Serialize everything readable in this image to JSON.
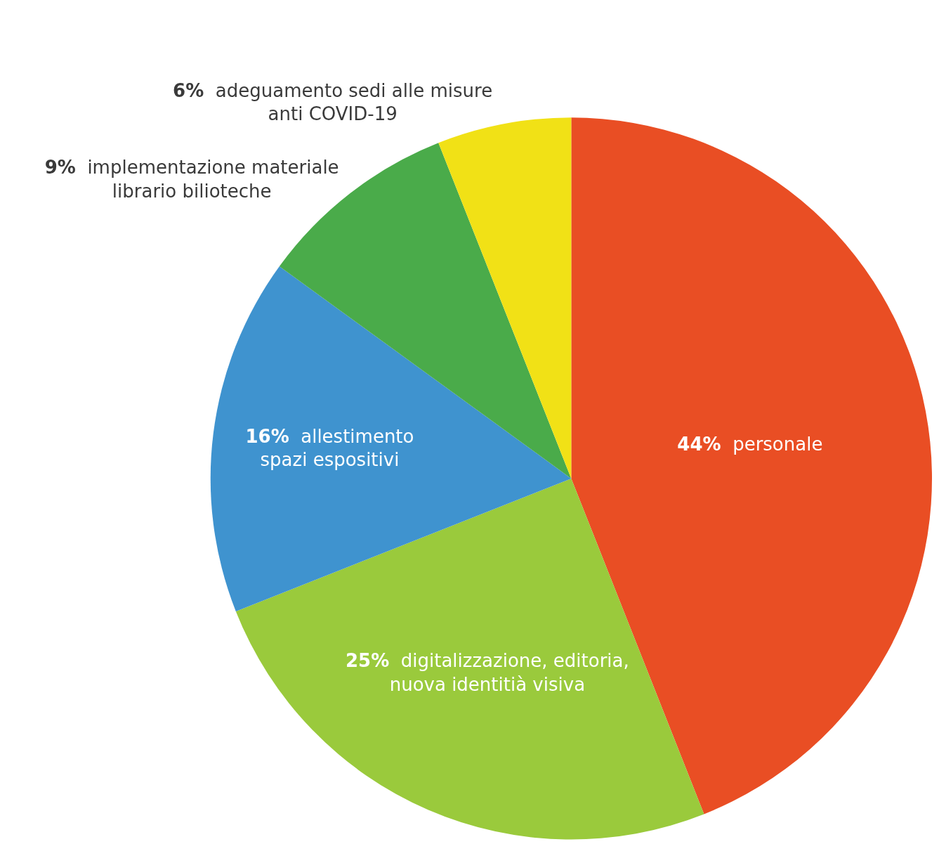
{
  "chart_data": {
    "type": "pie",
    "categories": [
      "personale",
      "digitalizzazione, editoria,\nnuova identitià visiva",
      "allestimento\nspazi espositivi",
      "implementazione materiale\nlibrario bilioteche",
      "adeguamento sedi alle misure\nanti COVID-19"
    ],
    "values": [
      44,
      25,
      16,
      9,
      6
    ],
    "value_labels": [
      "44%",
      "25%",
      "16%",
      "9%",
      "6%"
    ],
    "colors": [
      "#e94e24",
      "#9aca3c",
      "#3f93cf",
      "#4aab4a",
      "#f1e116"
    ],
    "legend": false
  }
}
